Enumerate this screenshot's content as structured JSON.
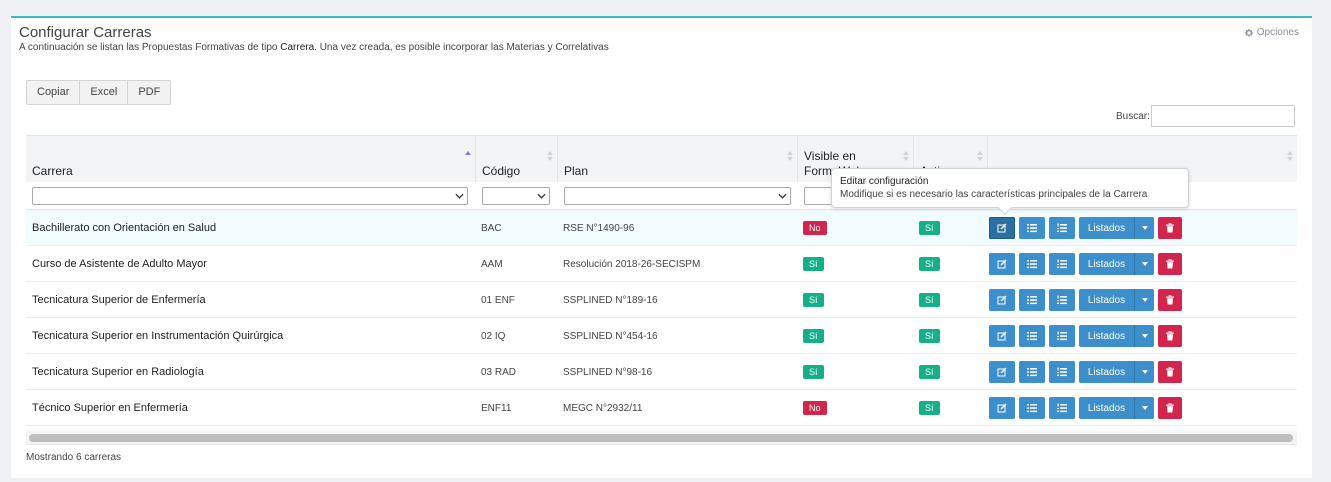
{
  "header": {
    "title": "Configurar Carreras",
    "subtitle_before": "A continuación se listan las Propuestas Formativas de tipo ",
    "subtitle_bold": "Carrera",
    "subtitle_after": ". Una vez creada, es posible incorporar las Materias y Correlativas",
    "options_label": "Opciones",
    "options_icon": "gear-icon"
  },
  "export": {
    "copy": "Copiar",
    "excel": "Excel",
    "pdf": "PDF"
  },
  "search": {
    "label": "Buscar:",
    "value": ""
  },
  "table": {
    "columns": {
      "carrera": "Carrera",
      "codigo": "Código",
      "plan": "Plan",
      "visible_l1": "Visible en",
      "visible_l2": "Form. Web",
      "activa": "Activa"
    },
    "rows": [
      {
        "carrera": "Bachillerato con Orientación en Salud",
        "codigo": "BAC",
        "plan": "RSE N°1490-96",
        "visible": "No",
        "activa": "Sí"
      },
      {
        "carrera": "Curso de Asistente de Adulto Mayor",
        "codigo": "AAM",
        "plan": "Resolución 2018-26-SECISPM",
        "visible": "Sí",
        "activa": "Sí"
      },
      {
        "carrera": "Tecnicatura Superior de Enfermería",
        "codigo": "01 ENF",
        "plan": "SSPLINED N°189-16",
        "visible": "Sí",
        "activa": "Sí"
      },
      {
        "carrera": "Tecnicatura Superior en Instrumentación Quirúrgica",
        "codigo": "02 IQ",
        "plan": "SSPLINED N°454-16",
        "visible": "Sí",
        "activa": "Sí"
      },
      {
        "carrera": "Tecnicatura Superior en Radiología",
        "codigo": "03 RAD",
        "plan": "SSPLINED N°98-16",
        "visible": "Sí",
        "activa": "Sí"
      },
      {
        "carrera": "Técnico Superior en Enfermería",
        "codigo": "ENF11",
        "plan": "MEGC N°2932/11",
        "visible": "No",
        "activa": "Sí"
      }
    ],
    "actions": {
      "listados_label": "Listados"
    }
  },
  "tooltip": {
    "title": "Editar configuración",
    "body": "Modifique si es necesario las características principales de la Carrera"
  },
  "footer": {
    "info": "Mostrando 6 carreras"
  },
  "colors": {
    "accent": "#3fb9c5",
    "primary": "#3c8fca",
    "danger": "#d1254b",
    "success": "#16b088"
  }
}
